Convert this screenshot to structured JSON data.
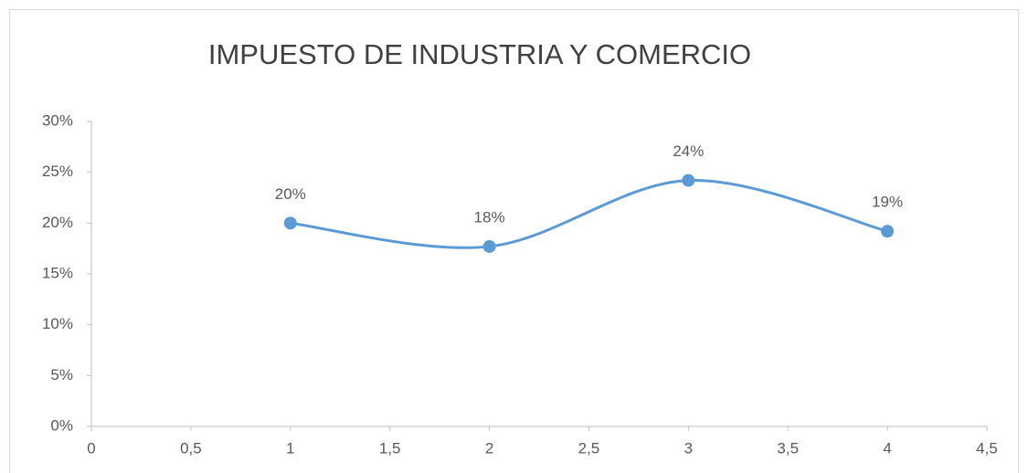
{
  "chart_data": {
    "type": "line",
    "title": "IMPUESTO DE INDUSTRIA Y COMERCIO",
    "x": [
      1,
      2,
      3,
      4
    ],
    "series": [
      {
        "color": "#5b9bd5",
        "values": [
          20,
          17.7,
          24.2,
          19.2
        ],
        "value_labels": [
          "20%",
          "18%",
          "24%",
          "19%"
        ]
      }
    ],
    "smooth": true,
    "xlim": [
      0,
      4.5
    ],
    "xticks": [
      0,
      {
        "value": 0.5,
        "label": "0,5"
      },
      1,
      {
        "value": 1.5,
        "label": "1,5"
      },
      2,
      {
        "value": 2.5,
        "label": "2,5"
      },
      3,
      {
        "value": 3.5,
        "label": "3,5"
      },
      4,
      {
        "value": 4.5,
        "label": "4,5"
      }
    ],
    "ylim": [
      0,
      30
    ],
    "yticks": [
      {
        "value": 0,
        "label": "0%"
      },
      {
        "value": 5,
        "label": "5%"
      },
      {
        "value": 10,
        "label": "10%"
      },
      {
        "value": 15,
        "label": "15%"
      },
      {
        "value": 20,
        "label": "20%"
      },
      {
        "value": 25,
        "label": "25%"
      },
      {
        "value": 30,
        "label": "30%"
      }
    ]
  }
}
